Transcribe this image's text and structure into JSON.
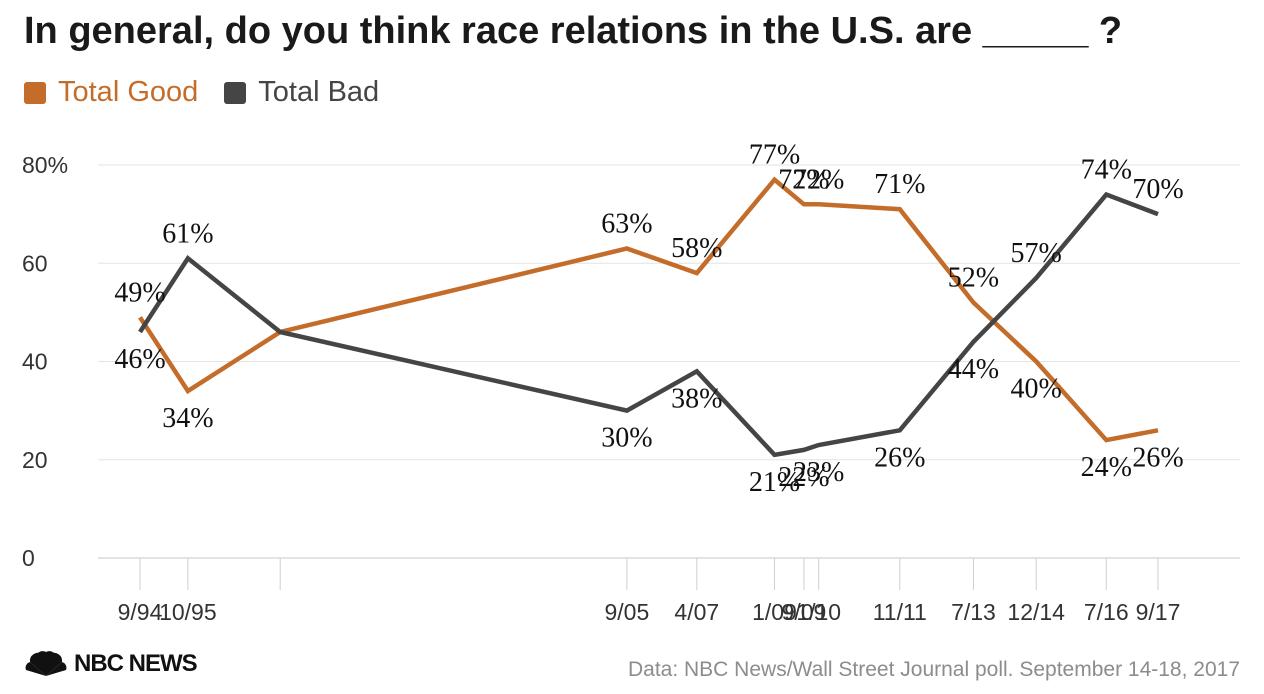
{
  "title": "In general, do you think race relations in the U.S. are _____ ?",
  "source": "Data: NBC News/Wall Street Journal poll. September 14-18, 2017",
  "logo": {
    "icon": "peacock-icon",
    "text": "NBC NEWS"
  },
  "colors": {
    "good": "#c46c2a",
    "bad": "#454545",
    "grid": "#e3e3e3"
  },
  "chart_data": {
    "type": "line",
    "title": "In general, do you think race relations in the U.S. are _____ ?",
    "xlabel": "",
    "ylabel": "",
    "ylim": [
      0,
      80
    ],
    "yticks": [
      0,
      20,
      40,
      60,
      80
    ],
    "ytick_labels": [
      "0",
      "20",
      "40",
      "60",
      "80%"
    ],
    "grid": true,
    "legend_position": "top-left",
    "x_ticks": [
      {
        "label": "9/94",
        "date": "1994-09-01"
      },
      {
        "label": "10/95",
        "date": "1995-10-01"
      },
      {
        "label": "",
        "date": "1997-11-01"
      },
      {
        "label": "9/05",
        "date": "2005-09-01"
      },
      {
        "label": "4/07",
        "date": "2007-04-01"
      },
      {
        "label": "1/09",
        "date": "2009-01-01"
      },
      {
        "label": "9/09",
        "date": "2009-09-01"
      },
      {
        "label": "1/10",
        "date": "2010-01-01"
      },
      {
        "label": "11/11",
        "date": "2011-11-01"
      },
      {
        "label": "7/13",
        "date": "2013-07-01"
      },
      {
        "label": "12/14",
        "date": "2014-12-01"
      },
      {
        "label": "7/16",
        "date": "2016-07-01"
      },
      {
        "label": "9/17",
        "date": "2017-09-01"
      }
    ],
    "series": [
      {
        "name": "Total Good",
        "color": "#c46c2a",
        "points": [
          {
            "x": "1994-09-01",
            "y": 49,
            "label": "49%"
          },
          {
            "x": "1995-10-01",
            "y": 34,
            "label": "34%"
          },
          {
            "x": "1997-11-01",
            "y": 46,
            "label": ""
          },
          {
            "x": "2005-09-01",
            "y": 63,
            "label": "63%"
          },
          {
            "x": "2007-04-01",
            "y": 58,
            "label": "58%"
          },
          {
            "x": "2009-01-01",
            "y": 77,
            "label": "77%"
          },
          {
            "x": "2009-09-01",
            "y": 72,
            "label": "72%"
          },
          {
            "x": "2010-01-01",
            "y": 72,
            "label": "72%"
          },
          {
            "x": "2011-11-01",
            "y": 71,
            "label": "71%"
          },
          {
            "x": "2013-07-01",
            "y": 52,
            "label": "52%"
          },
          {
            "x": "2014-12-01",
            "y": 40,
            "label": "40%"
          },
          {
            "x": "2016-07-01",
            "y": 24,
            "label": "24%"
          },
          {
            "x": "2017-09-01",
            "y": 26,
            "label": "26%"
          }
        ]
      },
      {
        "name": "Total Bad",
        "color": "#454545",
        "points": [
          {
            "x": "1994-09-01",
            "y": 46,
            "label": "46%"
          },
          {
            "x": "1995-10-01",
            "y": 61,
            "label": "61%"
          },
          {
            "x": "1997-11-01",
            "y": 46,
            "label": ""
          },
          {
            "x": "2005-09-01",
            "y": 30,
            "label": "30%"
          },
          {
            "x": "2007-04-01",
            "y": 38,
            "label": "38%"
          },
          {
            "x": "2009-01-01",
            "y": 21,
            "label": "21%"
          },
          {
            "x": "2009-09-01",
            "y": 22,
            "label": "22%"
          },
          {
            "x": "2010-01-01",
            "y": 23,
            "label": "23%"
          },
          {
            "x": "2011-11-01",
            "y": 26,
            "label": "26%"
          },
          {
            "x": "2013-07-01",
            "y": 44,
            "label": "44%"
          },
          {
            "x": "2014-12-01",
            "y": 57,
            "label": "57%"
          },
          {
            "x": "2016-07-01",
            "y": 74,
            "label": "74%"
          },
          {
            "x": "2017-09-01",
            "y": 70,
            "label": "70%"
          }
        ]
      }
    ]
  }
}
